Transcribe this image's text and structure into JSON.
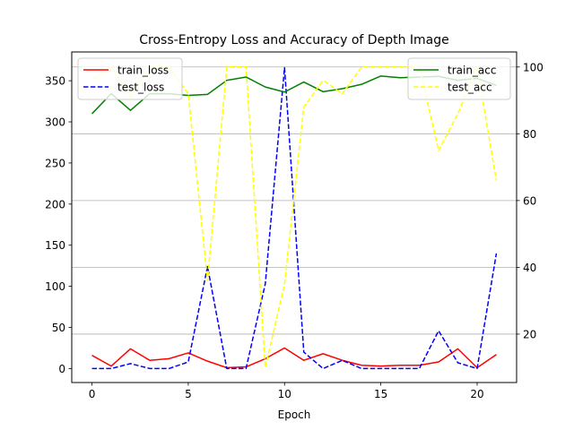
{
  "chart_data": {
    "type": "line",
    "title": "Cross-Entropy Loss and Accuracy of Depth Image",
    "xlabel": "Epoch",
    "x": [
      0,
      1,
      2,
      3,
      4,
      5,
      6,
      7,
      8,
      9,
      10,
      11,
      12,
      13,
      14,
      15,
      16,
      17,
      18,
      19,
      20,
      21
    ],
    "xlim": [
      -1.05,
      22.05
    ],
    "xticks": [
      0,
      5,
      10,
      15,
      20
    ],
    "left_axis": {
      "ylim": [
        -17,
        385
      ],
      "yticks": [
        0,
        50,
        100,
        150,
        200,
        250,
        300,
        350
      ]
    },
    "right_axis": {
      "ylim": [
        5.5,
        104.5
      ],
      "yticks": [
        20,
        40,
        60,
        80,
        100
      ],
      "grid": true
    },
    "series": [
      {
        "name": "train_loss",
        "axis": "left",
        "color": "#ff0000",
        "dash": "solid",
        "values": [
          16,
          3,
          24,
          10,
          12,
          19,
          9,
          1,
          2,
          12,
          25,
          10,
          18,
          10,
          4,
          3,
          4,
          4,
          8,
          24,
          1,
          17
        ]
      },
      {
        "name": "test_loss",
        "axis": "left",
        "color": "#0000ff",
        "dash": "dashed",
        "values": [
          0,
          0,
          6,
          0,
          0,
          8,
          124,
          0,
          0,
          103,
          366,
          20,
          0,
          10,
          0,
          0,
          0,
          0,
          46,
          7,
          0,
          140
        ]
      },
      {
        "name": "train_acc",
        "axis": "right",
        "color": "#008000",
        "dash": "solid",
        "values": [
          86,
          92,
          87,
          92,
          92,
          91.5,
          91.8,
          96,
          97,
          94,
          92.5,
          95.5,
          92.6,
          93.5,
          94.8,
          97.3,
          96.8,
          97,
          97.2,
          96,
          96.6,
          94.5
        ]
      },
      {
        "name": "test_acc",
        "axis": "right",
        "color": "#ffff00",
        "dash": "dashed",
        "values": [
          96,
          100,
          91,
          100,
          100,
          92,
          36,
          100,
          100,
          10,
          35,
          88,
          96,
          92,
          100,
          100,
          100,
          100,
          75,
          86,
          100,
          66
        ]
      }
    ],
    "legends": {
      "left": [
        "train_loss",
        "test_loss"
      ],
      "right": [
        "train_acc",
        "test_acc"
      ]
    }
  }
}
